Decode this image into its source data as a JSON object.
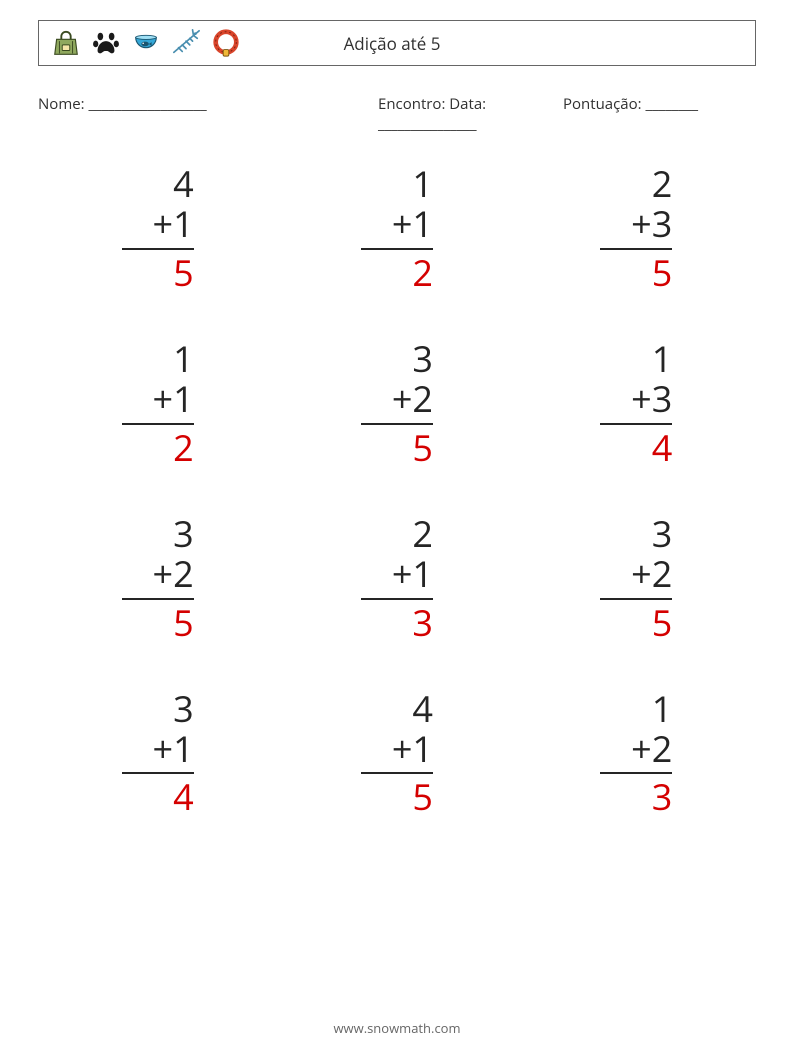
{
  "title": "Adição até 5",
  "icons": [
    "pet-carrier",
    "paw",
    "fish-bowl",
    "fish-bone",
    "pet-collar"
  ],
  "labels": {
    "nome": "Nome: __________________",
    "encontro": "Encontro: Data: _______________",
    "pontuacao": "Pontuação: ________"
  },
  "operator": "+",
  "problem_fontsize": 36,
  "text_color": "#252525",
  "answer_color": "#d40000",
  "border_color": "#666666",
  "background_color": "#ffffff",
  "columns": 3,
  "problems": [
    {
      "a": 4,
      "b": 1,
      "ans": 5
    },
    {
      "a": 1,
      "b": 1,
      "ans": 2
    },
    {
      "a": 2,
      "b": 3,
      "ans": 5
    },
    {
      "a": 1,
      "b": 1,
      "ans": 2
    },
    {
      "a": 3,
      "b": 2,
      "ans": 5
    },
    {
      "a": 1,
      "b": 3,
      "ans": 4
    },
    {
      "a": 3,
      "b": 2,
      "ans": 5
    },
    {
      "a": 2,
      "b": 1,
      "ans": 3
    },
    {
      "a": 3,
      "b": 2,
      "ans": 5
    },
    {
      "a": 3,
      "b": 1,
      "ans": 4
    },
    {
      "a": 4,
      "b": 1,
      "ans": 5
    },
    {
      "a": 1,
      "b": 2,
      "ans": 3
    }
  ],
  "footer": "www.snowmath.com"
}
